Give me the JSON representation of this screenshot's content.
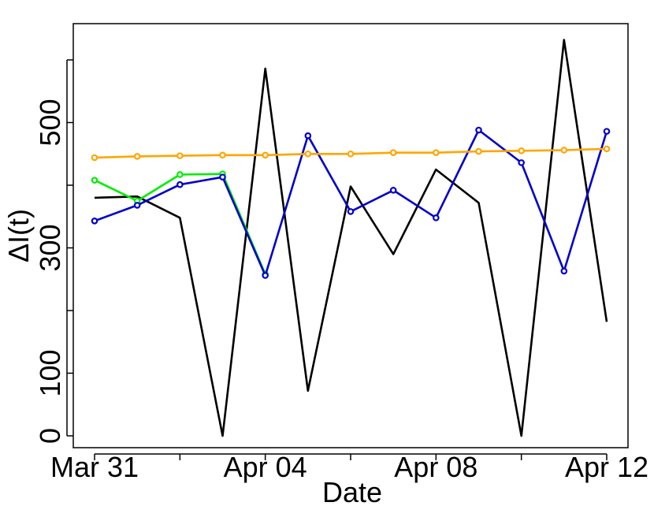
{
  "chart_data": {
    "type": "line",
    "xlabel": "Date",
    "ylabel": "ΔI(t)",
    "x": [
      "Mar 31",
      "Apr 01",
      "Apr 02",
      "Apr 03",
      "Apr 04",
      "Apr 05",
      "Apr 06",
      "Apr 07",
      "Apr 08",
      "Apr 09",
      "Apr 10",
      "Apr 11",
      "Apr 12"
    ],
    "x_tick_labels": [
      "Mar 31",
      "Apr 04",
      "Apr 08",
      "Apr 12"
    ],
    "x_tick_marks": [
      "Mar 31",
      "Apr 02",
      "Apr 04",
      "Apr 06",
      "Apr 08",
      "Apr 10",
      "Apr 12"
    ],
    "y_ticks": [
      0,
      100,
      300,
      500
    ],
    "ylim": [
      -20,
      660
    ],
    "grid": false,
    "series": [
      {
        "color": "#000000",
        "markers": false,
        "values": [
          380,
          382,
          348,
          0,
          586,
          72,
          398,
          290,
          425,
          372,
          0,
          632,
          182
        ]
      },
      {
        "color": "#00ee00",
        "markers": true,
        "values": [
          408,
          375,
          417,
          418,
          258,
          null,
          null,
          null,
          null,
          null,
          null,
          null,
          null
        ]
      },
      {
        "color": "#0000cc",
        "markers": true,
        "values": [
          343,
          368,
          401,
          413,
          256,
          479,
          358,
          392,
          348,
          488,
          436,
          263,
          486
        ]
      },
      {
        "color": "#ffa500",
        "markers": true,
        "values": [
          444,
          446,
          447,
          448,
          448,
          450,
          450,
          452,
          452,
          454,
          455,
          456,
          458
        ]
      }
    ]
  }
}
